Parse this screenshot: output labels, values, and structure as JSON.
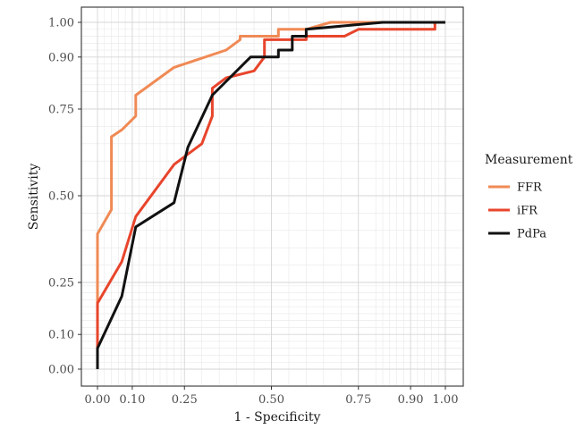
{
  "chart_data": {
    "type": "line",
    "title": "",
    "xlabel": "1 - Specificity",
    "ylabel": "Sensitivity",
    "xlim": [
      0,
      1
    ],
    "ylim": [
      0,
      1
    ],
    "x_ticks": [
      0.0,
      0.1,
      0.25,
      0.5,
      0.75,
      0.9,
      1.0
    ],
    "x_tick_labels": [
      "0.00",
      "0.10",
      "0.25",
      "0.50",
      "0.75",
      "0.90",
      "1.00"
    ],
    "y_ticks": [
      0.0,
      0.1,
      0.25,
      0.5,
      0.75,
      0.9,
      1.0
    ],
    "y_tick_labels": [
      "0.00",
      "0.10",
      "0.25",
      "0.50",
      "0.75",
      "0.90",
      "1.00"
    ],
    "minor_gridlines": [
      0.02,
      0.04,
      0.06,
      0.08,
      0.12,
      0.14,
      0.16,
      0.18,
      0.2,
      0.22,
      0.24,
      0.3,
      0.35,
      0.4,
      0.45,
      0.55,
      0.6,
      0.65,
      0.7,
      0.8,
      0.82,
      0.84,
      0.86,
      0.88,
      0.92,
      0.94,
      0.96,
      0.98
    ],
    "grid": true,
    "legend": {
      "title": "Measurement",
      "position": "right",
      "entries": [
        "FFR",
        "iFR",
        "PdPa"
      ]
    },
    "series": [
      {
        "name": "FFR",
        "color": "#f08a55",
        "x": [
          0.0,
          0.0,
          0.04,
          0.04,
          0.07,
          0.11,
          0.11,
          0.22,
          0.28,
          0.37,
          0.41,
          0.41,
          0.52,
          0.52,
          0.6,
          0.67,
          1.0
        ],
        "y": [
          0.0,
          0.39,
          0.46,
          0.67,
          0.69,
          0.73,
          0.79,
          0.87,
          0.89,
          0.92,
          0.95,
          0.96,
          0.96,
          0.98,
          0.98,
          1.0,
          1.0
        ]
      },
      {
        "name": "iFR",
        "color": "#e8452c",
        "x": [
          0.0,
          0.0,
          0.07,
          0.11,
          0.22,
          0.3,
          0.33,
          0.33,
          0.37,
          0.45,
          0.48,
          0.48,
          0.6,
          0.6,
          0.71,
          0.75,
          0.97,
          0.97
        ],
        "y": [
          0.0,
          0.19,
          0.31,
          0.44,
          0.59,
          0.65,
          0.73,
          0.81,
          0.84,
          0.86,
          0.9,
          0.95,
          0.95,
          0.96,
          0.96,
          0.98,
          0.98,
          1.0
        ]
      },
      {
        "name": "PdPa",
        "color": "#111111",
        "x": [
          0.0,
          0.0,
          0.07,
          0.11,
          0.22,
          0.26,
          0.33,
          0.44,
          0.49,
          0.52,
          0.52,
          0.56,
          0.56,
          0.6,
          0.6,
          0.82,
          1.0
        ],
        "y": [
          0.0,
          0.06,
          0.21,
          0.41,
          0.48,
          0.64,
          0.79,
          0.9,
          0.9,
          0.9,
          0.92,
          0.92,
          0.96,
          0.96,
          0.98,
          1.0,
          1.0
        ]
      }
    ]
  }
}
